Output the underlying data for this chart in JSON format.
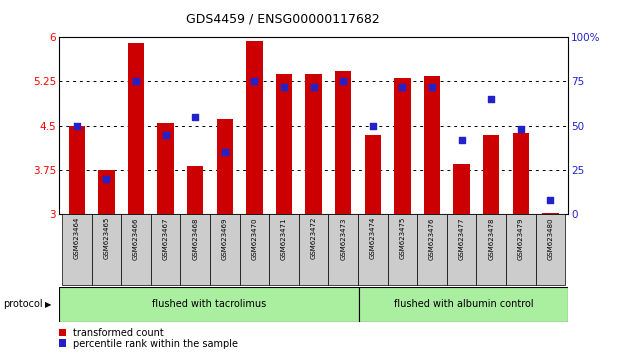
{
  "title": "GDS4459 / ENSG00000117682",
  "samples": [
    "GSM623464",
    "GSM623465",
    "GSM623466",
    "GSM623467",
    "GSM623468",
    "GSM623469",
    "GSM623470",
    "GSM623471",
    "GSM623472",
    "GSM623473",
    "GSM623474",
    "GSM623475",
    "GSM623476",
    "GSM623477",
    "GSM623478",
    "GSM623479",
    "GSM623480"
  ],
  "red_values": [
    4.5,
    3.75,
    5.9,
    4.55,
    3.82,
    4.62,
    5.93,
    5.37,
    5.38,
    5.42,
    4.35,
    5.3,
    5.35,
    3.85,
    4.35,
    4.38,
    3.02
  ],
  "blue_values": [
    50,
    20,
    75,
    45,
    55,
    35,
    75,
    72,
    72,
    75,
    50,
    72,
    72,
    42,
    65,
    48,
    8
  ],
  "ylim_left": [
    3,
    6
  ],
  "ylim_right": [
    0,
    100
  ],
  "yticks_left": [
    3,
    3.75,
    4.5,
    5.25,
    6
  ],
  "ytick_labels_left": [
    "3",
    "3.75",
    "4.5",
    "5.25",
    "6"
  ],
  "yticks_right": [
    0,
    25,
    50,
    75,
    100
  ],
  "ytick_labels_right": [
    "0",
    "25",
    "50",
    "75",
    "100%"
  ],
  "group1_label": "flushed with tacrolimus",
  "group2_label": "flushed with albumin control",
  "group1_count": 10,
  "protocol_label": "protocol",
  "legend_red": "transformed count",
  "legend_blue": "percentile rank within the sample",
  "bar_color": "#cc0000",
  "blue_color": "#2222cc",
  "group_bg": "#aaeea0",
  "sample_bg": "#cccccc",
  "bar_width": 0.55
}
